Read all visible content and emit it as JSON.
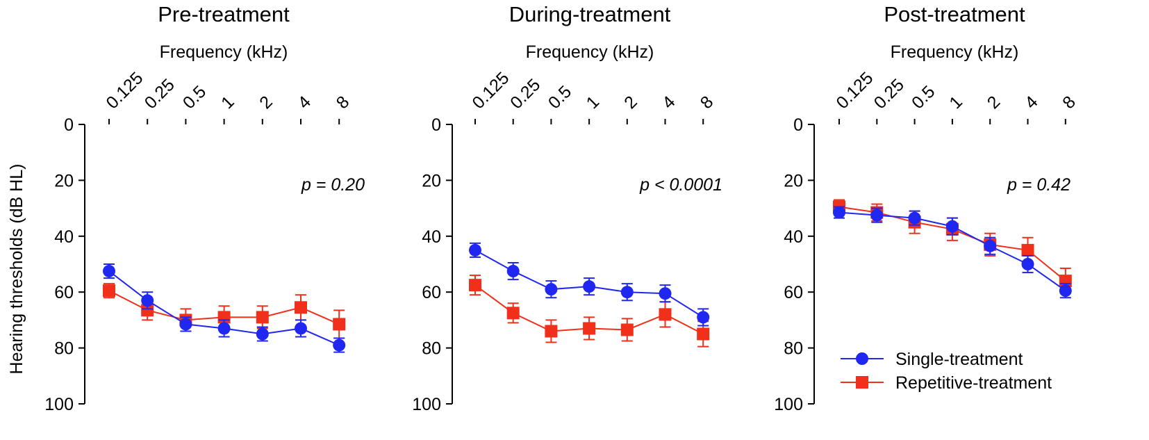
{
  "chart_data": [
    {
      "type": "line",
      "title": "Pre-treatment",
      "xlabel": "Frequency (kHz)",
      "ylabel": "Hearing thresholds (dB HL)",
      "categories": [
        "0.125",
        "0.25",
        "0.5",
        "1",
        "2",
        "4",
        "8"
      ],
      "yticks": [
        "0",
        "20",
        "40",
        "60",
        "80",
        "100"
      ],
      "ylim": [
        0,
        100
      ],
      "y_inverted": true,
      "annotation": "p = 0.20",
      "series": [
        {
          "name": "Single-treatment",
          "marker": "circle",
          "color": "#1f27f0",
          "values": [
            52.5,
            63,
            71.5,
            73,
            75,
            73,
            79
          ],
          "errors": [
            2.5,
            3,
            2.5,
            3,
            2.5,
            3,
            2.5
          ]
        },
        {
          "name": "Repetitive-treatment",
          "marker": "square",
          "color": "#f0301a",
          "values": [
            59.5,
            66.5,
            70,
            69,
            69,
            65.5,
            71.5
          ],
          "errors": [
            2.5,
            3.5,
            4,
            4,
            4,
            4.5,
            5
          ]
        }
      ]
    },
    {
      "type": "line",
      "title": "During-treatment",
      "xlabel": "Frequency (kHz)",
      "categories": [
        "0.125",
        "0.25",
        "0.5",
        "1",
        "2",
        "4",
        "8"
      ],
      "yticks": [
        "0",
        "20",
        "40",
        "60",
        "80",
        "100"
      ],
      "ylim": [
        0,
        100
      ],
      "y_inverted": true,
      "annotation": "p < 0.0001",
      "series": [
        {
          "name": "Single-treatment",
          "marker": "circle",
          "color": "#1f27f0",
          "values": [
            45,
            52.5,
            59,
            58,
            60,
            60.5,
            69
          ],
          "errors": [
            2.5,
            3,
            3,
            3,
            3,
            3,
            3
          ]
        },
        {
          "name": "Repetitive-treatment",
          "marker": "square",
          "color": "#f0301a",
          "values": [
            57.5,
            67.5,
            74,
            73,
            73.5,
            68,
            75
          ],
          "errors": [
            3.5,
            3.5,
            4,
            4,
            4,
            4.5,
            4.5
          ]
        }
      ]
    },
    {
      "type": "line",
      "title": "Post-treatment",
      "xlabel": "Frequency (kHz)",
      "categories": [
        "0.125",
        "0.25",
        "0.5",
        "1",
        "2",
        "4",
        "8"
      ],
      "yticks": [
        "0",
        "20",
        "40",
        "60",
        "80",
        "100"
      ],
      "ylim": [
        0,
        100
      ],
      "y_inverted": true,
      "annotation": "p = 0.42",
      "series": [
        {
          "name": "Single-treatment",
          "marker": "circle",
          "color": "#1f27f0",
          "values": [
            31.5,
            32.5,
            33.5,
            36.5,
            43.5,
            50,
            59.5
          ],
          "errors": [
            2,
            2.5,
            2.5,
            3,
            3,
            3,
            2.5
          ]
        },
        {
          "name": "Repetitive-treatment",
          "marker": "square",
          "color": "#f0301a",
          "values": [
            29.5,
            31.5,
            35,
            37.5,
            43,
            45,
            56
          ],
          "errors": [
            2.5,
            3,
            4,
            4,
            4,
            4.5,
            4.5
          ]
        }
      ]
    }
  ],
  "legend": {
    "position": "bottom-right",
    "items": [
      {
        "label": "Single-treatment",
        "marker": "circle",
        "color": "#1f27f0"
      },
      {
        "label": "Repetitive-treatment",
        "marker": "square",
        "color": "#f0301a"
      }
    ]
  }
}
